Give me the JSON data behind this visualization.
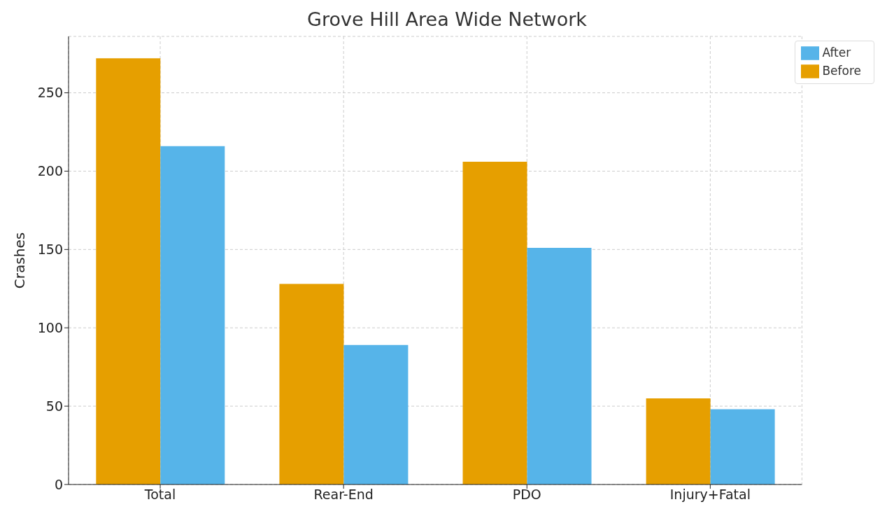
{
  "chart_data": {
    "type": "bar",
    "title": "Grove Hill Area Wide Network",
    "ylabel": "Crashes",
    "categories": [
      "Total",
      "Rear-End",
      "PDO",
      "Injury+Fatal"
    ],
    "series": [
      {
        "name": "Before",
        "color": "#e69f00",
        "values": [
          272,
          128,
          206,
          55
        ]
      },
      {
        "name": "After",
        "color": "#56b4e9",
        "values": [
          216,
          89,
          151,
          48
        ]
      }
    ],
    "ylim": [
      0,
      286
    ],
    "yticks": [
      0,
      50,
      100,
      150,
      200,
      250
    ],
    "grid": true,
    "legend": "top right"
  }
}
